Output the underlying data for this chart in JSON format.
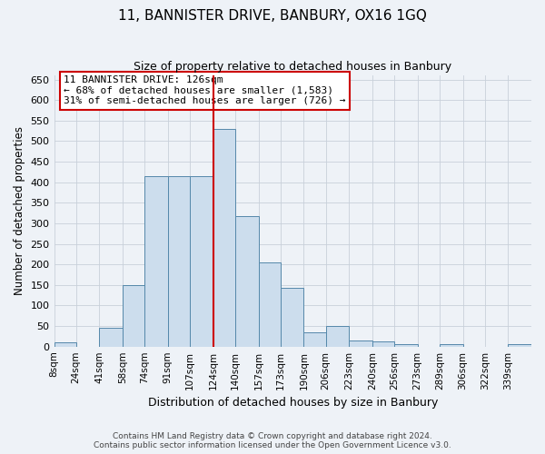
{
  "title": "11, BANNISTER DRIVE, BANBURY, OX16 1GQ",
  "subtitle": "Size of property relative to detached houses in Banbury",
  "xlabel": "Distribution of detached houses by size in Banbury",
  "ylabel": "Number of detached properties",
  "bin_labels": [
    "8sqm",
    "24sqm",
    "41sqm",
    "58sqm",
    "74sqm",
    "91sqm",
    "107sqm",
    "124sqm",
    "140sqm",
    "157sqm",
    "173sqm",
    "190sqm",
    "206sqm",
    "223sqm",
    "240sqm",
    "256sqm",
    "273sqm",
    "289sqm",
    "306sqm",
    "322sqm",
    "339sqm"
  ],
  "bin_edges": [
    8,
    24,
    41,
    58,
    74,
    91,
    107,
    124,
    140,
    157,
    173,
    190,
    206,
    223,
    240,
    256,
    273,
    289,
    306,
    322,
    339
  ],
  "bar_heights": [
    10,
    0,
    45,
    150,
    415,
    415,
    415,
    530,
    317,
    205,
    143,
    35,
    50,
    15,
    13,
    5,
    0,
    5,
    0,
    0,
    7
  ],
  "bar_color": "#ccdded",
  "bar_edge_color": "#5588aa",
  "property_line_x": 124,
  "property_line_color": "#cc0000",
  "annotation_title": "11 BANNISTER DRIVE: 126sqm",
  "annotation_line1": "← 68% of detached houses are smaller (1,583)",
  "annotation_line2": "31% of semi-detached houses are larger (726) →",
  "annotation_box_color": "#cc0000",
  "ylim": [
    0,
    660
  ],
  "yticks": [
    0,
    50,
    100,
    150,
    200,
    250,
    300,
    350,
    400,
    450,
    500,
    550,
    600,
    650
  ],
  "grid_color": "#c8d0da",
  "bg_color": "#eef2f7",
  "footnote1": "Contains HM Land Registry data © Crown copyright and database right 2024.",
  "footnote2": "Contains public sector information licensed under the Open Government Licence v3.0."
}
